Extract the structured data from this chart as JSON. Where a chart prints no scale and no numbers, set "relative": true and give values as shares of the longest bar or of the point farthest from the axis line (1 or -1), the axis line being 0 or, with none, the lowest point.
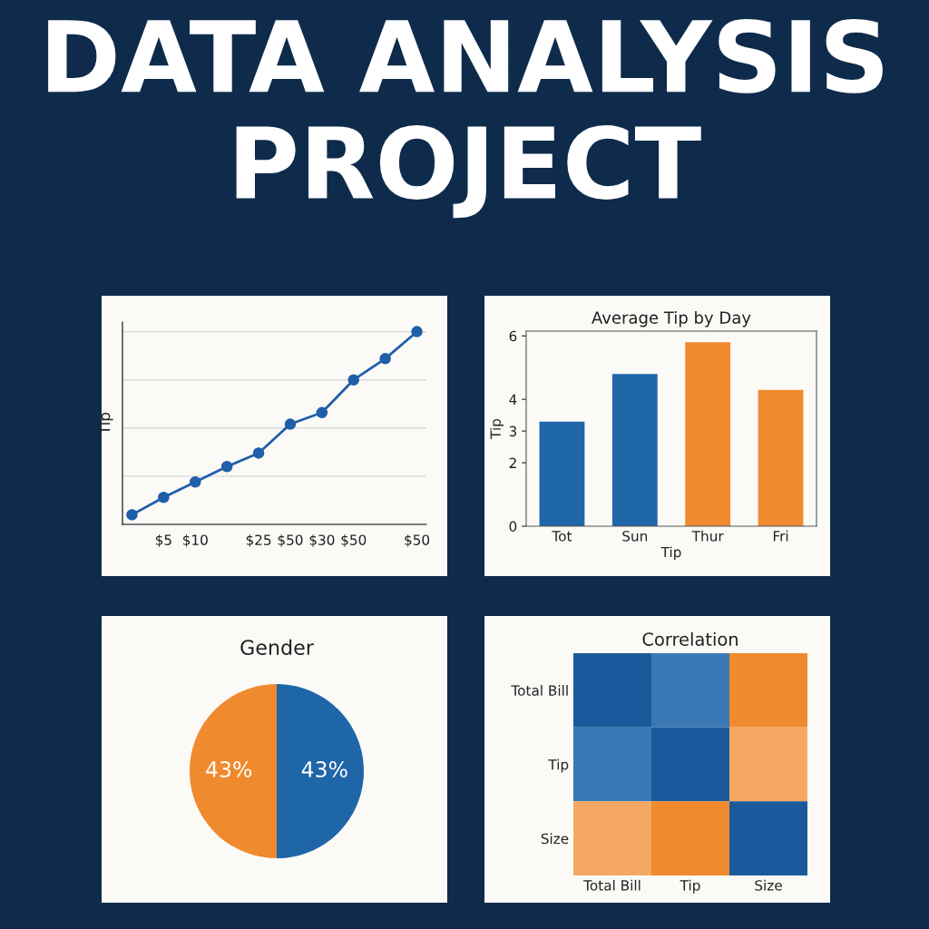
{
  "chart_data": [
    {
      "type": "other",
      "title": "DATA ANALYSIS PROJECT"
    },
    {
      "type": "line",
      "ylabel": "Tip",
      "relative": true,
      "grid": "y",
      "marker": "circle",
      "line_style": "solid",
      "categories": [
        null,
        "$5",
        "$10",
        null,
        "$25",
        "$50",
        "$30",
        "$50",
        null,
        "$50"
      ],
      "series": [
        {
          "color": "#1f5fa8",
          "values": [
            0.05,
            0.14,
            0.22,
            0.3,
            0.37,
            0.52,
            0.58,
            0.75,
            0.86,
            1
          ]
        }
      ]
    },
    {
      "type": "bar",
      "title": "Average Tip by Day",
      "xlabel": "Tip",
      "ylabel": "Tip",
      "categories": [
        "Tot",
        "Sun",
        "Thur",
        "Fri"
      ],
      "values": [
        3.3,
        4.8,
        5.8,
        4.3
      ],
      "colors": [
        "#1f66a8",
        "#1f66a8",
        "#f08a2e",
        "#f08a2e"
      ],
      "ylim": [
        0,
        6.15
      ],
      "yticks": [
        0,
        2,
        3,
        4,
        6
      ]
    },
    {
      "type": "pie",
      "title": "Gender",
      "categories": [
        null,
        null
      ],
      "values": [
        43,
        43
      ],
      "colors": [
        "#f08a2e",
        "#1f66a8"
      ],
      "value_labels": [
        "43%",
        "43%"
      ]
    },
    {
      "type": "other",
      "title": "Correlation",
      "categories": [
        "Total Bill",
        "Tip",
        "Size"
      ],
      "y_categories": [
        "Total Bill",
        "Tip",
        "Size"
      ],
      "colors": [
        [
          "#1a5a9c",
          "#3a78b6",
          "#f08a2e"
        ],
        [
          "#3a78b6",
          "#1a5a9c",
          "#f4a862"
        ],
        [
          "#f4a862",
          "#f08a2e",
          "#1a5a9c"
        ]
      ]
    }
  ]
}
